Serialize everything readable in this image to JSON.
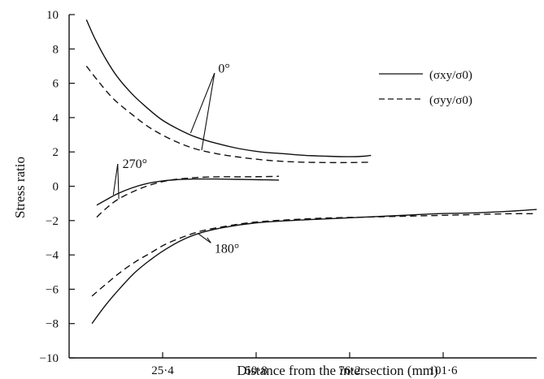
{
  "chart_data": {
    "type": "line",
    "xlabel": "Distance from the intersection (mm)",
    "ylabel": "Stress ratio",
    "xlim": [
      0,
      127
    ],
    "ylim": [
      -10,
      10
    ],
    "x_ticks": [
      25.4,
      50.8,
      76.2,
      101.6
    ],
    "x_tick_labels": [
      "25·4",
      "50·8",
      "76·2",
      "101·6"
    ],
    "y_ticks": [
      -10,
      -8,
      -6,
      -4,
      -2,
      0,
      2,
      4,
      6,
      8,
      10
    ],
    "y_tick_labels": [
      "−10",
      "−8",
      "−6",
      "−4",
      "−2",
      "0",
      "2",
      "4",
      "6",
      "8",
      "10"
    ],
    "grid": false,
    "legend_position": "top-right",
    "legend": [
      {
        "label": "(σxy/σ0)",
        "style": "solid"
      },
      {
        "label": "(σyy/σ0)",
        "style": "dashed"
      }
    ],
    "annotations": [
      {
        "text": "0°",
        "series": [
          "σxy 0°",
          "σyy 0°"
        ]
      },
      {
        "text": "270°",
        "series": [
          "σxy 270°",
          "σyy 270°"
        ]
      },
      {
        "text": "180°",
        "series": [
          "σxy 180°",
          "σyy 180°"
        ]
      }
    ],
    "series": [
      {
        "style": "solid",
        "group": "0°",
        "x": [
          4.7,
          7,
          10,
          13,
          17,
          21,
          25,
          29,
          34,
          40,
          46,
          52,
          58,
          64,
          70,
          76,
          80,
          82
        ],
        "y": [
          9.7,
          8.6,
          7.4,
          6.4,
          5.4,
          4.6,
          3.9,
          3.4,
          2.9,
          2.5,
          2.2,
          2.0,
          1.9,
          1.8,
          1.75,
          1.72,
          1.75,
          1.8
        ]
      },
      {
        "style": "dashed",
        "group": "0°",
        "x": [
          4.7,
          8,
          12,
          17,
          22,
          28,
          34,
          40,
          46,
          52,
          58,
          64,
          70,
          76,
          82
        ],
        "y": [
          7.0,
          6.1,
          5.1,
          4.2,
          3.4,
          2.7,
          2.2,
          1.9,
          1.7,
          1.55,
          1.45,
          1.4,
          1.38,
          1.38,
          1.4
        ]
      },
      {
        "style": "solid",
        "group": "270°",
        "x": [
          7.5,
          10,
          13,
          17,
          21,
          25,
          29,
          34,
          40,
          46,
          52,
          57
        ],
        "y": [
          -1.1,
          -0.8,
          -0.45,
          -0.1,
          0.15,
          0.3,
          0.38,
          0.42,
          0.42,
          0.4,
          0.38,
          0.36
        ]
      },
      {
        "style": "dashed",
        "group": "270°",
        "x": [
          7.5,
          10,
          13,
          17,
          21,
          25,
          29,
          34,
          40,
          46,
          52,
          57
        ],
        "y": [
          -1.8,
          -1.3,
          -0.8,
          -0.35,
          0.0,
          0.25,
          0.4,
          0.5,
          0.55,
          0.55,
          0.56,
          0.58
        ]
      },
      {
        "style": "solid",
        "group": "180°",
        "x": [
          6.2,
          10,
          14,
          18,
          22,
          26,
          31,
          36,
          42,
          50,
          60,
          70,
          80,
          90,
          100,
          110,
          120,
          127
        ],
        "y": [
          -8.0,
          -6.9,
          -5.9,
          -5.0,
          -4.3,
          -3.7,
          -3.1,
          -2.7,
          -2.4,
          -2.15,
          -2.0,
          -1.9,
          -1.8,
          -1.7,
          -1.6,
          -1.55,
          -1.45,
          -1.35
        ]
      },
      {
        "style": "dashed",
        "group": "180°",
        "x": [
          6.2,
          10,
          14,
          18,
          22,
          26,
          31,
          36,
          42,
          50,
          60,
          70,
          80,
          90,
          100,
          110,
          120,
          127
        ],
        "y": [
          -6.4,
          -5.7,
          -5.0,
          -4.4,
          -3.9,
          -3.4,
          -2.95,
          -2.6,
          -2.35,
          -2.1,
          -1.95,
          -1.85,
          -1.8,
          -1.75,
          -1.7,
          -1.65,
          -1.6,
          -1.6
        ]
      }
    ]
  }
}
